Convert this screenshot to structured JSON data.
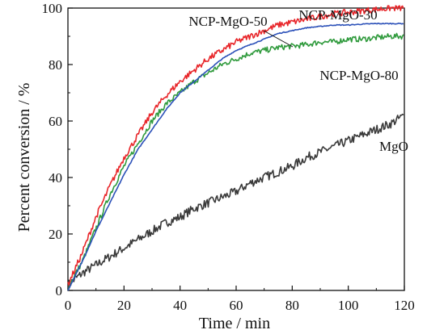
{
  "chart_data": {
    "type": "line",
    "title": "",
    "xlabel": "Time / min",
    "ylabel": "Percent conversion / %",
    "xlim": [
      0,
      120
    ],
    "ylim": [
      0,
      100
    ],
    "xticks": [
      0,
      20,
      40,
      60,
      80,
      100,
      120
    ],
    "yticks": [
      0,
      20,
      40,
      60,
      80,
      100
    ],
    "grid": false,
    "legend": "inline labels",
    "series": [
      {
        "name": "NCP-MgO-30",
        "color": "#e8262a",
        "x": [
          0,
          5,
          10,
          15,
          20,
          25,
          30,
          35,
          40,
          45,
          50,
          55,
          60,
          65,
          70,
          75,
          80,
          85,
          90,
          95,
          100,
          105,
          110,
          115,
          120
        ],
        "values": [
          2,
          13,
          26,
          37,
          47,
          55,
          63,
          69,
          74,
          78,
          82,
          85,
          88,
          90,
          92,
          94,
          95,
          96,
          97,
          98,
          98.5,
          99,
          99.5,
          100,
          100
        ]
      },
      {
        "name": "NCP-MgO-50",
        "color": "#2b50b8",
        "x": [
          0,
          5,
          10,
          15,
          20,
          25,
          30,
          35,
          40,
          45,
          50,
          55,
          60,
          65,
          70,
          75,
          80,
          85,
          90,
          95,
          100,
          105,
          110,
          115,
          120
        ],
        "values": [
          0,
          10,
          21,
          31,
          41,
          50,
          57,
          64,
          70,
          74,
          78,
          82,
          85,
          87,
          89,
          91,
          92,
          93,
          93.5,
          94,
          94,
          94.3,
          94.5,
          94.5,
          94.5
        ]
      },
      {
        "name": "NCP-MgO-80",
        "color": "#2f9a3c",
        "x": [
          0,
          5,
          10,
          15,
          20,
          25,
          30,
          35,
          40,
          45,
          50,
          55,
          60,
          65,
          70,
          75,
          80,
          85,
          90,
          95,
          100,
          105,
          110,
          115,
          120
        ],
        "values": [
          1,
          10,
          22,
          34,
          44,
          52,
          60,
          66,
          70,
          74,
          77,
          80,
          82,
          84,
          85,
          86,
          86.5,
          87,
          88,
          88,
          89,
          89,
          89.5,
          90,
          90
        ]
      },
      {
        "name": "MgO",
        "color": "#3a3a3a",
        "x": [
          0,
          5,
          10,
          15,
          20,
          25,
          30,
          35,
          40,
          45,
          50,
          55,
          60,
          65,
          70,
          75,
          80,
          85,
          90,
          95,
          100,
          105,
          110,
          115,
          120
        ],
        "values": [
          2,
          6,
          9,
          12,
          15,
          18,
          21,
          24,
          26,
          29,
          31,
          33,
          35,
          38,
          40,
          42,
          44,
          47,
          49,
          51,
          53,
          55,
          57,
          59,
          62
        ]
      }
    ]
  }
}
